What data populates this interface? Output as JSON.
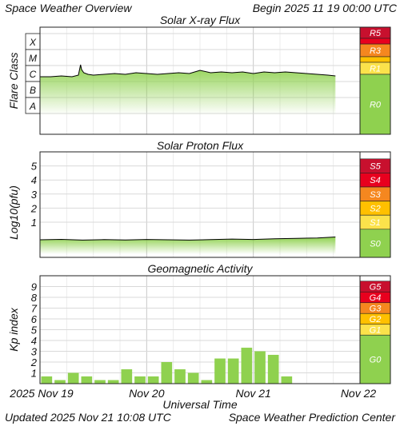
{
  "header": {
    "title": "Space Weather Overview",
    "begin": "Begin 2025 11 19 00:00 UTC",
    "updated": "Updated 2025 Nov 21 10:08 UTC",
    "credit": "Space Weather Prediction Center"
  },
  "x_axis": {
    "label": "Universal Time",
    "ticks": [
      "2025 Nov 19",
      "Nov 20",
      "Nov 21",
      "Nov 22"
    ]
  },
  "colors": {
    "green": "#8fd14f",
    "red_dark": "#c8102e",
    "red": "#e8001e",
    "orange": "#f5871f",
    "yellow_orange": "#ffc000",
    "yellow": "#fbe24b",
    "grid": "#d9d9d9"
  },
  "chart_data": [
    {
      "type": "area",
      "title": "Solar X-ray Flux",
      "ylabel": "Flare Class",
      "y_classes": [
        "X",
        "M",
        "C",
        "B",
        "A"
      ],
      "x_unit": "days since 2025 Nov 19 00:00 UTC",
      "xlim": [
        0,
        3
      ],
      "x": [
        0.0,
        0.1,
        0.2,
        0.3,
        0.36,
        0.38,
        0.39,
        0.41,
        0.45,
        0.5,
        0.6,
        0.7,
        0.8,
        0.9,
        1.0,
        1.1,
        1.2,
        1.3,
        1.4,
        1.5,
        1.6,
        1.7,
        1.8,
        1.9,
        2.0,
        2.1,
        2.2,
        2.3,
        2.4,
        2.5,
        2.6,
        2.7,
        2.77
      ],
      "class_level": [
        2.3,
        2.3,
        2.35,
        2.3,
        2.4,
        3.05,
        2.75,
        2.55,
        2.45,
        2.4,
        2.45,
        2.5,
        2.45,
        2.55,
        2.5,
        2.45,
        2.5,
        2.55,
        2.5,
        2.7,
        2.55,
        2.6,
        2.55,
        2.6,
        2.5,
        2.6,
        2.55,
        2.6,
        2.55,
        2.5,
        2.45,
        2.4,
        2.35
      ],
      "scale": [
        "R5",
        "R3",
        "R1",
        "R0"
      ]
    },
    {
      "type": "area",
      "title": "Solar Proton Flux",
      "ylabel": "Log10(pfu)",
      "ylim": [
        -1.5,
        6
      ],
      "yticks": [
        1,
        2,
        3,
        4,
        5
      ],
      "x": [
        0.0,
        0.2,
        0.4,
        0.6,
        0.8,
        1.0,
        1.2,
        1.4,
        1.6,
        1.8,
        2.0,
        2.2,
        2.4,
        2.6,
        2.77
      ],
      "values": [
        -0.25,
        -0.22,
        -0.27,
        -0.24,
        -0.26,
        -0.23,
        -0.25,
        -0.27,
        -0.24,
        -0.2,
        -0.23,
        -0.18,
        -0.15,
        -0.12,
        -0.05
      ],
      "scale": [
        "S5",
        "S4",
        "S3",
        "S2",
        "S1",
        "S0"
      ]
    },
    {
      "type": "bar",
      "title": "Geomagnetic Activity",
      "ylabel": "Kp index",
      "ylim": [
        0,
        10
      ],
      "yticks": [
        1,
        2,
        3,
        4,
        5,
        6,
        7,
        8,
        9
      ],
      "bar_width_days": 0.125,
      "values": [
        0.67,
        0.33,
        1.0,
        0.67,
        0.33,
        0.33,
        1.33,
        0.67,
        0.67,
        2.0,
        1.33,
        1.0,
        0.33,
        2.33,
        2.33,
        3.33,
        3.0,
        2.67,
        0.67
      ],
      "scale": [
        "G5",
        "G4",
        "G3",
        "G2",
        "G1",
        "G0"
      ]
    }
  ]
}
